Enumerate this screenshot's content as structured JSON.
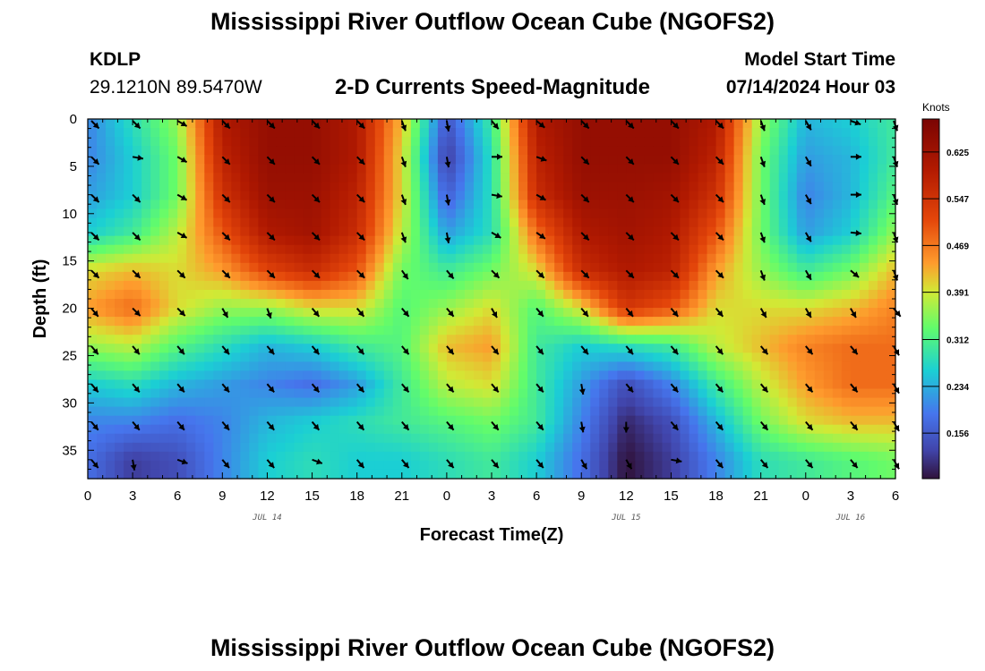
{
  "header": {
    "title": "Mississippi River Outflow Ocean Cube (NGOFS2)",
    "station": "KDLP",
    "coordinates": "29.1210N  89.5470W",
    "subtitle": "2-D Currents Speed-Magnitude",
    "start_label": "Model Start Time",
    "start_value": "07/14/2024 Hour 03"
  },
  "footer": {
    "title": "Mississippi River Outflow Ocean Cube (NGOFS2)"
  },
  "chart_data": {
    "type": "heatmap",
    "title": "2-D Currents Speed-Magnitude",
    "xlabel": "Forecast Time(Z)",
    "ylabel": "Depth (ft)",
    "x_range_hours": [
      0,
      54
    ],
    "x_tick_labels": [
      "0",
      "3",
      "6",
      "9",
      "12",
      "15",
      "18",
      "21",
      "0",
      "3",
      "6",
      "9",
      "12",
      "15",
      "18",
      "21",
      "0",
      "3",
      "6"
    ],
    "date_labels": [
      {
        "text": "JUL 14",
        "hour": 12
      },
      {
        "text": "JUL 15",
        "hour": 36
      },
      {
        "text": "JUL 16",
        "hour": 51
      }
    ],
    "ylim": [
      0,
      38
    ],
    "y_ticks": [
      0,
      5,
      10,
      15,
      20,
      25,
      30,
      35
    ],
    "colorbar": {
      "unit": "Knots",
      "range": [
        0.08,
        0.68
      ],
      "tick_values": [
        0.625,
        0.547,
        0.469,
        0.391,
        0.312,
        0.234,
        0.156
      ],
      "tick_labels": [
        "0.625",
        "0.547",
        "0.469",
        "0.391",
        "0.312",
        "0.234",
        "0.156"
      ]
    },
    "times": [
      0,
      3,
      6,
      9,
      12,
      15,
      18,
      21,
      24,
      27,
      30,
      33,
      36,
      39,
      42,
      45,
      48,
      51,
      54
    ],
    "depths": [
      0,
      4,
      8,
      12,
      16,
      20,
      24,
      28,
      32,
      36
    ],
    "speed": [
      [
        0.2,
        0.28,
        0.36,
        0.6,
        0.64,
        0.64,
        0.6,
        0.42,
        0.15,
        0.3,
        0.6,
        0.64,
        0.64,
        0.64,
        0.6,
        0.36,
        0.24,
        0.26,
        0.3
      ],
      [
        0.2,
        0.26,
        0.34,
        0.58,
        0.64,
        0.64,
        0.6,
        0.4,
        0.12,
        0.28,
        0.58,
        0.64,
        0.64,
        0.64,
        0.58,
        0.34,
        0.22,
        0.24,
        0.3
      ],
      [
        0.22,
        0.26,
        0.34,
        0.55,
        0.63,
        0.63,
        0.58,
        0.4,
        0.16,
        0.28,
        0.56,
        0.63,
        0.63,
        0.62,
        0.55,
        0.34,
        0.2,
        0.24,
        0.32
      ],
      [
        0.26,
        0.3,
        0.38,
        0.5,
        0.6,
        0.62,
        0.56,
        0.38,
        0.22,
        0.28,
        0.48,
        0.6,
        0.62,
        0.6,
        0.5,
        0.34,
        0.22,
        0.26,
        0.36
      ],
      [
        0.4,
        0.42,
        0.4,
        0.44,
        0.52,
        0.56,
        0.5,
        0.34,
        0.3,
        0.34,
        0.4,
        0.56,
        0.6,
        0.58,
        0.44,
        0.36,
        0.3,
        0.34,
        0.42
      ],
      [
        0.44,
        0.48,
        0.4,
        0.36,
        0.36,
        0.4,
        0.4,
        0.32,
        0.36,
        0.4,
        0.32,
        0.4,
        0.54,
        0.5,
        0.4,
        0.4,
        0.4,
        0.42,
        0.46
      ],
      [
        0.36,
        0.38,
        0.32,
        0.28,
        0.24,
        0.26,
        0.3,
        0.32,
        0.42,
        0.44,
        0.3,
        0.26,
        0.28,
        0.3,
        0.38,
        0.42,
        0.46,
        0.48,
        0.48
      ],
      [
        0.26,
        0.28,
        0.24,
        0.22,
        0.2,
        0.18,
        0.22,
        0.3,
        0.38,
        0.4,
        0.3,
        0.22,
        0.14,
        0.2,
        0.3,
        0.38,
        0.44,
        0.48,
        0.48
      ],
      [
        0.2,
        0.2,
        0.18,
        0.2,
        0.24,
        0.26,
        0.28,
        0.3,
        0.32,
        0.34,
        0.3,
        0.2,
        0.1,
        0.14,
        0.24,
        0.34,
        0.4,
        0.42,
        0.42
      ],
      [
        0.18,
        0.12,
        0.14,
        0.2,
        0.26,
        0.28,
        0.26,
        0.26,
        0.28,
        0.3,
        0.26,
        0.18,
        0.08,
        0.12,
        0.2,
        0.28,
        0.3,
        0.32,
        0.34
      ]
    ],
    "vector_times": [
      0,
      3,
      6,
      9,
      12,
      15,
      18,
      21,
      24,
      27,
      30,
      33,
      36,
      39,
      42,
      45,
      48,
      51,
      54
    ],
    "vector_depths": [
      0,
      4,
      8,
      12,
      16,
      20,
      24,
      28,
      32,
      36
    ],
    "vector_direction_deg": [
      [
        135,
        135,
        120,
        135,
        135,
        135,
        135,
        160,
        170,
        140,
        130,
        135,
        135,
        135,
        135,
        160,
        150,
        110,
        160
      ],
      [
        135,
        100,
        120,
        135,
        135,
        135,
        135,
        160,
        170,
        90,
        110,
        135,
        135,
        135,
        135,
        160,
        150,
        90,
        160
      ],
      [
        135,
        135,
        120,
        135,
        135,
        135,
        135,
        160,
        170,
        100,
        120,
        135,
        135,
        135,
        135,
        160,
        150,
        90,
        160
      ],
      [
        135,
        135,
        120,
        135,
        135,
        135,
        135,
        160,
        170,
        120,
        125,
        135,
        135,
        135,
        135,
        160,
        150,
        95,
        160
      ],
      [
        135,
        135,
        135,
        135,
        135,
        135,
        135,
        145,
        140,
        135,
        135,
        135,
        135,
        135,
        135,
        160,
        150,
        130,
        160
      ],
      [
        140,
        135,
        135,
        150,
        160,
        140,
        140,
        140,
        140,
        150,
        140,
        140,
        140,
        140,
        140,
        150,
        150,
        150,
        140
      ],
      [
        140,
        140,
        140,
        140,
        140,
        140,
        140,
        140,
        140,
        140,
        140,
        140,
        140,
        140,
        140,
        140,
        140,
        140,
        150
      ],
      [
        140,
        140,
        140,
        140,
        140,
        140,
        140,
        140,
        140,
        140,
        140,
        170,
        140,
        140,
        140,
        140,
        140,
        140,
        150
      ],
      [
        140,
        140,
        140,
        140,
        140,
        140,
        140,
        140,
        140,
        140,
        140,
        170,
        180,
        140,
        140,
        140,
        140,
        140,
        150
      ],
      [
        140,
        170,
        110,
        140,
        140,
        110,
        140,
        140,
        140,
        140,
        140,
        150,
        150,
        100,
        140,
        140,
        140,
        140,
        150
      ]
    ]
  }
}
